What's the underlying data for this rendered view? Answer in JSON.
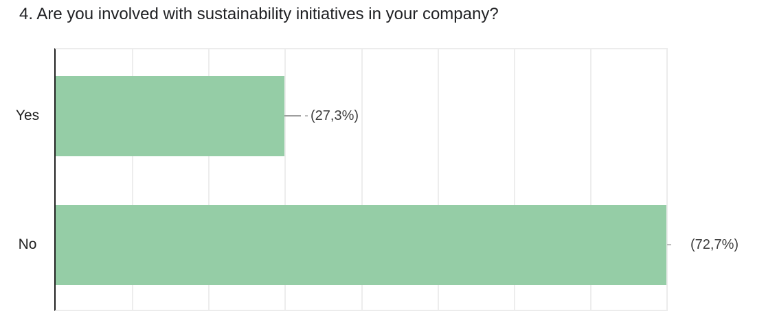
{
  "chart_data": {
    "type": "bar",
    "orientation": "horizontal",
    "title": "4. Are you involved with sustainability initiatives in your company?",
    "categories": [
      "Yes",
      "No"
    ],
    "values_percent": [
      27.3,
      72.7
    ],
    "value_labels": [
      "(27,3%)",
      "(72,7%)"
    ],
    "bar_fractions": [
      0.375,
      1.0
    ],
    "x_gridline_intervals": 8,
    "grid": true,
    "legend": "none",
    "annotations_style": "leader-line-with-percent-label"
  },
  "colors": {
    "bar": "#95cda6",
    "axis_line": "#212121",
    "gridline": "#ededed",
    "plot_border": "#ececec",
    "title_text": "#202124",
    "category_text": "#212121",
    "value_text": "#3c3c3c",
    "leader_line": "#9e9e9e",
    "background": "#ffffff"
  }
}
